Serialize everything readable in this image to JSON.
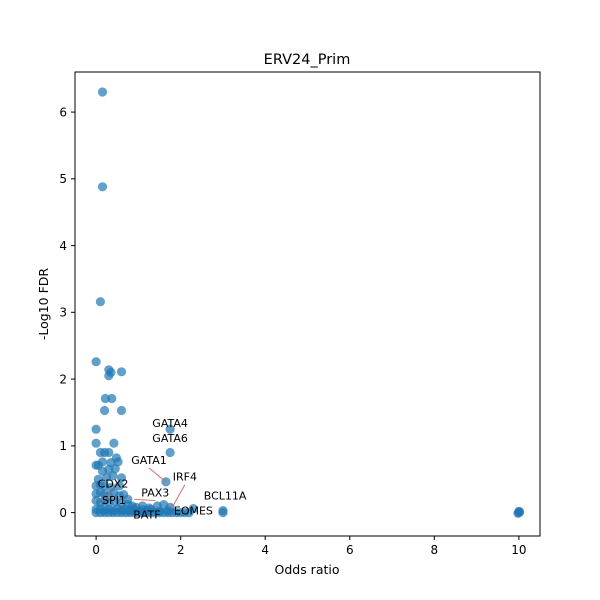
{
  "chart_data": {
    "type": "scatter",
    "title": "ERV24_Prim",
    "xlabel": "Odds ratio",
    "ylabel": "-Log10 FDR",
    "xlim": [
      -0.5,
      10.5
    ],
    "ylim": [
      -0.35,
      6.6
    ],
    "xticks": [
      0,
      2,
      4,
      6,
      8,
      10
    ],
    "yticks": [
      0,
      1,
      2,
      3,
      4,
      5,
      6
    ],
    "xtick_labels": [
      "0",
      "2",
      "4",
      "6",
      "8",
      "10"
    ],
    "ytick_labels": [
      "0",
      "1",
      "2",
      "3",
      "4",
      "5",
      "6"
    ],
    "grid": false,
    "point_color": "#1f77b4",
    "point_alpha": 0.7,
    "annotation_line_color": "#e06060",
    "points": [
      [
        0.15,
        6.3
      ],
      [
        0.15,
        4.88
      ],
      [
        0.1,
        3.16
      ],
      [
        0.0,
        2.26
      ],
      [
        0.3,
        2.14
      ],
      [
        0.35,
        2.1
      ],
      [
        0.6,
        2.11
      ],
      [
        0.3,
        2.05
      ],
      [
        0.22,
        1.71
      ],
      [
        0.37,
        1.71
      ],
      [
        0.2,
        1.53
      ],
      [
        0.6,
        1.53
      ],
      [
        0.0,
        1.25
      ],
      [
        0.0,
        1.04
      ],
      [
        0.42,
        1.04
      ],
      [
        0.1,
        0.9
      ],
      [
        0.2,
        0.9
      ],
      [
        0.3,
        0.9
      ],
      [
        0.48,
        0.82
      ],
      [
        0.0,
        0.71
      ],
      [
        0.05,
        0.71
      ],
      [
        0.15,
        0.76
      ],
      [
        0.35,
        0.75
      ],
      [
        0.52,
        0.76
      ],
      [
        0.15,
        0.62
      ],
      [
        0.3,
        0.65
      ],
      [
        0.45,
        0.66
      ],
      [
        0.05,
        0.5
      ],
      [
        0.25,
        0.53
      ],
      [
        0.4,
        0.55
      ],
      [
        0.6,
        0.52
      ],
      [
        0.0,
        0.4
      ],
      [
        0.1,
        0.42
      ],
      [
        0.2,
        0.4
      ],
      [
        0.35,
        0.38
      ],
      [
        0.55,
        0.4
      ],
      [
        0.0,
        0.28
      ],
      [
        0.1,
        0.3
      ],
      [
        0.2,
        0.28
      ],
      [
        0.3,
        0.25
      ],
      [
        0.42,
        0.3
      ],
      [
        0.55,
        0.25
      ],
      [
        0.65,
        0.27
      ],
      [
        0.75,
        0.2
      ],
      [
        0.0,
        0.18
      ],
      [
        0.1,
        0.15
      ],
      [
        0.2,
        0.18
      ],
      [
        0.3,
        0.15
      ],
      [
        0.45,
        0.16
      ],
      [
        0.6,
        0.14
      ],
      [
        0.75,
        0.12
      ],
      [
        0.85,
        0.1
      ],
      [
        0.95,
        0.08
      ],
      [
        1.1,
        0.1
      ],
      [
        1.25,
        0.07
      ],
      [
        1.45,
        0.1
      ],
      [
        1.6,
        0.12
      ],
      [
        1.75,
        0.08
      ],
      [
        0.0,
        0.05
      ],
      [
        0.1,
        0.06
      ],
      [
        0.2,
        0.04
      ],
      [
        0.3,
        0.05
      ],
      [
        0.4,
        0.03
      ],
      [
        0.5,
        0.06
      ],
      [
        0.6,
        0.04
      ],
      [
        0.7,
        0.05
      ],
      [
        0.8,
        0.03
      ],
      [
        0.9,
        0.05
      ],
      [
        1.0,
        0.02
      ],
      [
        1.1,
        0.04
      ],
      [
        1.2,
        0.03
      ],
      [
        1.3,
        0.05
      ],
      [
        1.5,
        0.02
      ],
      [
        1.7,
        0.03
      ],
      [
        0.0,
        0.0
      ],
      [
        0.1,
        0.0
      ],
      [
        0.2,
        0.0
      ],
      [
        0.3,
        0.0
      ],
      [
        0.4,
        0.0
      ],
      [
        0.5,
        0.0
      ],
      [
        0.6,
        0.0
      ],
      [
        0.7,
        0.0
      ],
      [
        0.8,
        0.0
      ],
      [
        0.9,
        0.0
      ],
      [
        1.0,
        0.0
      ],
      [
        1.1,
        0.0
      ],
      [
        1.2,
        0.0
      ],
      [
        1.3,
        0.0
      ],
      [
        1.4,
        0.0
      ],
      [
        1.5,
        0.0
      ],
      [
        1.6,
        0.0
      ],
      [
        1.7,
        0.0
      ],
      [
        1.8,
        0.0
      ],
      [
        1.9,
        0.0
      ],
      [
        2.0,
        0.0
      ],
      [
        2.1,
        0.0
      ],
      [
        1.75,
        1.25
      ],
      [
        1.75,
        0.9
      ],
      [
        1.65,
        0.46
      ],
      [
        2.2,
        0.0
      ],
      [
        2.3,
        0.06
      ],
      [
        3.0,
        0.03
      ],
      [
        3.0,
        0.0
      ],
      [
        10.0,
        0.0
      ],
      [
        10.0,
        0.02
      ],
      [
        9.98,
        -0.01
      ],
      [
        10.02,
        0.01
      ]
    ],
    "annotations": [
      {
        "label": "GATA4",
        "point": [
          1.75,
          1.25
        ],
        "text_at": [
          1.75,
          1.25
        ],
        "leader": false
      },
      {
        "label": "GATA6",
        "point": [
          1.75,
          0.9
        ],
        "text_at": [
          1.75,
          1.03
        ],
        "leader": false
      },
      {
        "label": "GATA1",
        "point": [
          1.65,
          0.46
        ],
        "text_at": [
          1.25,
          0.7
        ],
        "leader": true
      },
      {
        "label": "IRF4",
        "point": [
          1.8,
          0.08
        ],
        "text_at": [
          2.1,
          0.45
        ],
        "leader": true
      },
      {
        "label": "CDX2",
        "point": [
          0.1,
          0.18
        ],
        "text_at": [
          0.4,
          0.35
        ],
        "leader": true
      },
      {
        "label": "PAX3",
        "point": [
          0.9,
          0.2
        ],
        "text_at": [
          1.4,
          0.21
        ],
        "leader": true
      },
      {
        "label": "BCL11A",
        "point": [
          2.3,
          0.0
        ],
        "text_at": [
          3.05,
          0.17
        ],
        "leader": false
      },
      {
        "label": "SPI1",
        "point": [
          0.05,
          0.05
        ],
        "text_at": [
          0.42,
          0.1
        ],
        "leader": false
      },
      {
        "label": "EOMES",
        "point": [
          1.8,
          0.02
        ],
        "text_at": [
          2.3,
          -0.06
        ],
        "leader": false
      },
      {
        "label": "BATF",
        "point": [
          0.8,
          0.0
        ],
        "text_at": [
          1.2,
          -0.12
        ],
        "leader": false
      }
    ]
  }
}
